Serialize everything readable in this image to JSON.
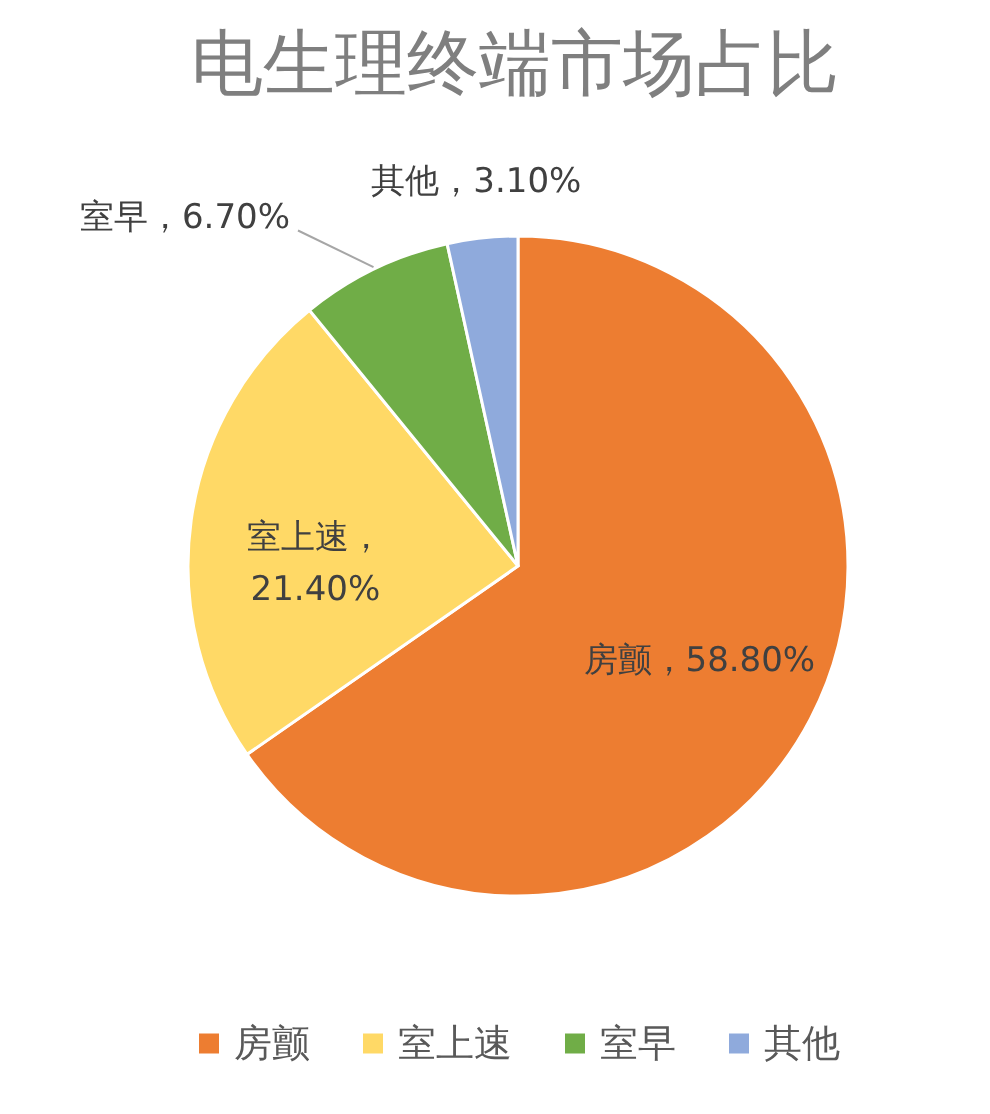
{
  "chart_data": {
    "type": "pie",
    "title": "电生理终端市场占比",
    "categories": [
      "房颤",
      "室上速",
      "室早",
      "其他"
    ],
    "values": [
      58.8,
      21.4,
      6.7,
      3.1
    ],
    "colors": [
      "#ed7d31",
      "#ffd966",
      "#70ad47",
      "#8faadc"
    ],
    "value_labels": [
      "房颤，58.80%",
      "室上速，21.40%",
      "室早，6.70%",
      "其他，3.10%"
    ],
    "legend": "bottom"
  }
}
